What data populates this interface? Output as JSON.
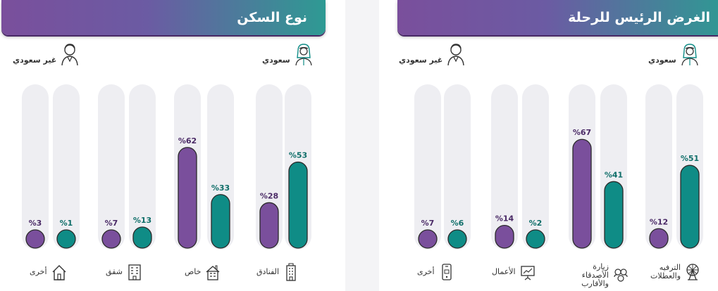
{
  "colors": {
    "saudi": "#0f8c86",
    "non_saudi": "#7a4f9c",
    "track": "#eeeef2",
    "outline": "#2a2a2a"
  },
  "left_panel": {
    "title": "نوع السكن",
    "legend": {
      "saudi": "سعودي",
      "non_saudi": "غير سعودي"
    }
  },
  "right_panel": {
    "title": "الغرض الرئيس للرحلة",
    "legend": {
      "saudi": "سعودي",
      "non_saudi": "غير سعودي"
    }
  },
  "chart_data": [
    {
      "type": "bar",
      "title": "نوع السكن",
      "categories": [
        "الفنادق",
        "خاص",
        "شقق",
        "أخرى"
      ],
      "category_icons": [
        "hotel-icon",
        "house-icon",
        "apartment-icon",
        "home-outline-icon"
      ],
      "series": [
        {
          "name": "سعودي",
          "values": [
            53,
            33,
            13,
            1
          ],
          "labels": [
            "%53",
            "%33",
            "%13",
            "%1"
          ]
        },
        {
          "name": "غير سعودي",
          "values": [
            28,
            62,
            7,
            3
          ],
          "labels": [
            "%28",
            "%62",
            "%7",
            "%3"
          ]
        }
      ],
      "ylim": [
        0,
        100
      ],
      "legend": "top"
    },
    {
      "type": "bar",
      "title": "الغرض الرئيس للرحلة",
      "categories": [
        "الترفيه والعطلات",
        "زيارة الأصدقاء والأقارب",
        "الأعمال",
        "أخرى"
      ],
      "category_icons": [
        "ferris-wheel-icon",
        "friends-icon",
        "presentation-icon",
        "mobile-icon"
      ],
      "series": [
        {
          "name": "سعودي",
          "values": [
            51,
            41,
            2,
            6
          ],
          "labels": [
            "%51",
            "%41",
            "%2",
            "%6"
          ]
        },
        {
          "name": "غير سعودي",
          "values": [
            12,
            67,
            14,
            7
          ],
          "labels": [
            "%12",
            "%67",
            "%14",
            "%7"
          ]
        }
      ],
      "ylim": [
        0,
        100
      ],
      "legend": "top"
    }
  ]
}
